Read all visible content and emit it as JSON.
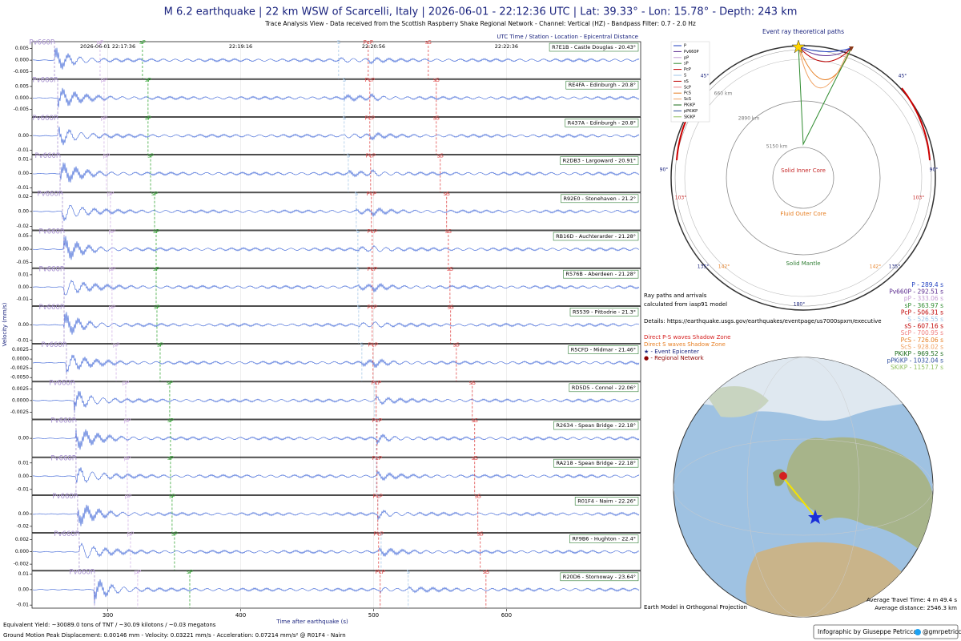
{
  "header": {
    "title": "M 6.2 earthquake | 22 km WSW of Scarcelli, Italy | 2026-06-01 - 22:12:36 UTC | Lat: 39.33° - Lon: 15.78° - Depth: 243 km",
    "subtitle": "Trace Analysis View - Data received from the Scottish Raspberry Shake Regional Network - Channel: Vertical (HZ) - Bandpass Filter: 0.7 - 2.0 Hz"
  },
  "seismograms": {
    "corner_note": "UTC Time / Station - Location - Epicentral Distance",
    "y_label": "Velocity (mm/s)",
    "x_label": "Time after earthquake (s)",
    "xlim": [
      243,
      701
    ],
    "xticks": [
      300,
      400,
      500,
      600
    ],
    "utc_ticks": [
      {
        "value": 300,
        "label": "2026-06-01 22:17:36"
      },
      {
        "value": 400,
        "label": "22:19:16"
      },
      {
        "value": 500,
        "label": "22:20:56"
      },
      {
        "value": 600,
        "label": "22:22:36"
      }
    ],
    "phases": [
      {
        "name": "Pv660P",
        "color": "#a58fcf"
      },
      {
        "name": "pP",
        "color": "#d2b4e6"
      },
      {
        "name": "sP",
        "color": "#3aa83a"
      },
      {
        "name": "S",
        "color": "#a9c9e8"
      },
      {
        "name": "PcP",
        "color": "#e04a4a"
      },
      {
        "name": "sS",
        "color": "#e04a4a"
      }
    ],
    "trace_color": "#3b63d6",
    "traces": [
      {
        "station": "R7E1B - Castle Douglas - 20.43°",
        "ylim": [
          -0.008,
          0.008
        ],
        "yticks": [
          0.005,
          {
            "value": 0,
            "label": "0.000"
          },
          -0.005
        ],
        "arrivals": [
          259.9,
          294.2,
          326.1,
          473.7,
          496,
          541.2
        ]
      },
      {
        "station": "RE4FA - Edinburgh - 20.8°",
        "ylim": [
          -0.008,
          0.008
        ],
        "yticks": [
          0.005,
          {
            "value": 0,
            "label": "0.000"
          },
          -0.005
        ],
        "arrivals": [
          262.3,
          297.2,
          330.3,
          477.9,
          497.2,
          547.2
        ]
      },
      {
        "station": "R437A - Edinburgh - 20.8°",
        "ylim": [
          -0.013,
          0.013
        ],
        "yticks": [
          {
            "value": 0,
            "label": "0.00"
          },
          -0.01
        ],
        "arrivals": [
          262.3,
          297.2,
          330.3,
          477.9,
          497.2,
          547.2
        ]
      },
      {
        "station": "R2DB3 - Largoward - 20.91°",
        "ylim": [
          -0.013,
          0.013
        ],
        "yticks": [
          0.01,
          {
            "value": 0,
            "label": "0.00"
          },
          -0.01
        ],
        "arrivals": [
          264.1,
          299,
          332.2,
          481,
          497.8,
          550.2
        ]
      },
      {
        "station": "R92E0 - Stonehaven - 21.2°",
        "ylim": [
          -0.025,
          0.025
        ],
        "yticks": [
          0.02,
          {
            "value": 0,
            "label": "0.00"
          },
          -0.02
        ],
        "arrivals": [
          265.9,
          302,
          335.2,
          487,
          498.4,
          555
        ]
      },
      {
        "station": "RB16D - Auchterarder - 21.28°",
        "ylim": [
          -0.07,
          0.07
        ],
        "yticks": [
          0.05,
          {
            "value": 0,
            "label": "0.00"
          },
          -0.05
        ],
        "arrivals": [
          267.1,
          303.2,
          336.4,
          488.2,
          499,
          556.3
        ]
      },
      {
        "station": "R576B - Aberdeen - 21.28°",
        "ylim": [
          -0.015,
          0.015
        ],
        "yticks": [
          0.01,
          {
            "value": 0,
            "label": "0.00"
          },
          -0.01
        ],
        "arrivals": [
          267.1,
          303.2,
          336.4,
          488.2,
          499,
          557.5
        ]
      },
      {
        "station": "R5539 - Pittodrie - 21.3°",
        "ylim": [
          -0.012,
          0.012
        ],
        "yticks": [
          {
            "value": 0,
            "label": "0.00"
          },
          -0.01
        ],
        "arrivals": [
          267.1,
          303.2,
          337,
          488.8,
          499,
          558
        ]
      },
      {
        "station": "R5CFD - Midmar - 21.46°",
        "ylim": [
          -0.006,
          0.004
        ],
        "yticks": [
          0.0025,
          {
            "value": 0,
            "label": "0.0000"
          },
          {
            "value": -0.0025,
            "label": "-0.0025"
          },
          {
            "value": -0.005,
            "label": "-0.0050"
          }
        ],
        "arrivals": [
          268.9,
          306.3,
          339.4,
          491.2,
          499.6,
          562.3
        ]
      },
      {
        "station": "RD5D5 - Connel - 22.06°",
        "ylim": [
          -0.004,
          0.004
        ],
        "yticks": [
          0.0025,
          {
            "value": 0,
            "label": "0.0000"
          },
          -0.0025
        ],
        "arrivals": [
          274.9,
          313.5,
          346.6,
          500.8,
          502,
          574.3
        ]
      },
      {
        "station": "R2634 - Spean Bridge - 22.18°",
        "ylim": [
          -0.05,
          0.05
        ],
        "yticks": [
          {
            "value": 0,
            "label": "0.00"
          }
        ],
        "arrivals": [
          276.1,
          314.7,
          347.2,
          502,
          502.6,
          576.1
        ]
      },
      {
        "station": "RA218 - Spean Bridge - 22.18°",
        "ylim": [
          -0.014,
          0.014
        ],
        "yticks": [
          0.01,
          {
            "value": 0,
            "label": "0.00"
          },
          -0.01
        ],
        "arrivals": [
          276.1,
          314.7,
          347.2,
          502,
          502.6,
          576.1
        ]
      },
      {
        "station": "R01F4 - Nairn - 22.26°",
        "ylim": [
          -0.03,
          0.03
        ],
        "yticks": [
          {
            "value": 0,
            "label": "0.00"
          },
          -0.02
        ],
        "arrivals": [
          277.3,
          315.3,
          348.4,
          503.2,
          503.2,
          578.5
        ]
      },
      {
        "station": "RF9B6 - Hughton - 22.4°",
        "ylim": [
          -0.003,
          0.003
        ],
        "yticks": [
          0.002,
          {
            "value": 0,
            "label": "0.000"
          },
          -0.002
        ],
        "arrivals": [
          278.5,
          317.1,
          350.2,
          505.7,
          503.8,
          580.3
        ]
      },
      {
        "station": "R20D6 - Stornoway - 23.64°",
        "ylim": [
          -0.012,
          0.012
        ],
        "yticks": [
          0.01,
          {
            "value": 0,
            "label": "0.00"
          },
          -0.01
        ],
        "arrivals": [
          290,
          322.5,
          361.7,
          526.1,
          505,
          584.6
        ]
      }
    ]
  },
  "ray_panel": {
    "title": "Event ray theoretical paths",
    "regions": [
      "Solid Inner Core",
      "Fluid Outer Core",
      "Solid Mantle"
    ],
    "depths": [
      "660 km",
      "2890 km",
      "5150 km"
    ],
    "angles": [
      "45°",
      "45°",
      "90°",
      "90°",
      "103°",
      "103°",
      "135°",
      "135°",
      "142°",
      "142°",
      "180°"
    ]
  },
  "arrivals": {
    "names": [
      "P",
      "Pv660P",
      "pP",
      "sP",
      "PcP",
      "S",
      "sS",
      "ScP",
      "PcS",
      "ScS",
      "PKiKP",
      "pPKiKP",
      "SKiKP"
    ],
    "values": [
      289.4,
      292.51,
      333.06,
      363.97,
      506.31,
      526.55,
      607.16,
      700.95,
      726.06,
      928.02,
      969.52,
      1032.04,
      1157.17
    ],
    "value_labels": [
      "P - 289.4 s",
      "Pv660P - 292.51 s",
      "pP - 333.06 s",
      "sP - 363.97 s",
      "PcP - 506.31 s",
      "S - 526.55 s",
      "sS - 607.16 s",
      "ScP - 700.95 s",
      "PcS - 726.06 s",
      "ScS - 928.02 s",
      "PKiKP - 969.52 s",
      "pPKiKP - 1032.04 s",
      "SKiKP - 1157.17 s"
    ],
    "colors": [
      "#1f3fbf",
      "#5b2c8f",
      "#c39bd3",
      "#2e8b2e",
      "#c00000",
      "#9fc5e8",
      "#c00000",
      "#f08080",
      "#e67e22",
      "#f0a060",
      "#1a6b1a",
      "#2f4fa0",
      "#90c060"
    ]
  },
  "notes": {
    "model": [
      "Ray paths and arrivals",
      "calculated from iasp91 model"
    ],
    "details": "Details: https://earthquake.usgs.gov/earthquakes/eventpage/us7000spxm/executive",
    "ps_shadow": "Direct P-S waves Shadow Zone",
    "s_shadow": "Direct S waves Shadow Zone",
    "epicenter": "★ - Event Epicenter",
    "network": "● - Regional Network",
    "projection": "Earth Model in Orthogonal Projection",
    "travel_time": "Average Travel Time: 4 m 49.4 s",
    "distance": "Average distance: 2546.3 km"
  },
  "footer": {
    "yield": "Equivalent Yield: ~30089.0 tons of TNT / ~30.09 kilotons / ~0.03 megatons",
    "motion": "Ground Motion Peak Displacement: 0.00146 mm - Velocity: 0.03221 mm/s - Acceleration: 0.07214  mm/s² @ R01F4 - Nairn",
    "credit": "Infographic by Giuseppe Petricca",
    "handle": "@gmrpetricca"
  }
}
